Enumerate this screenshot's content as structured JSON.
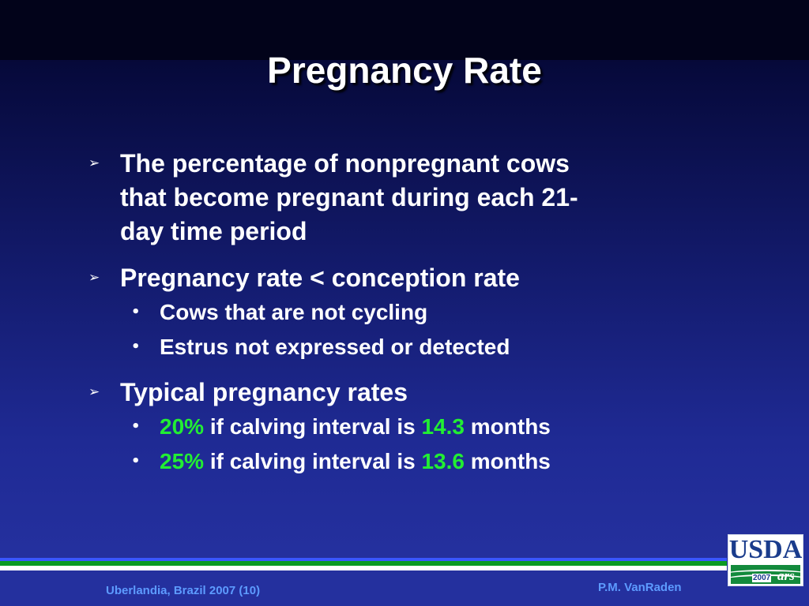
{
  "slide": {
    "title": "Pregnancy Rate",
    "bullets": [
      {
        "line1": "The percentage of nonpregnant cows",
        "line2": "that become pregnant during each 21-",
        "line3": "day time period"
      },
      {
        "text": "Pregnancy rate < conception rate",
        "sub": [
          "Cows that are not cycling",
          "Estrus not expressed or detected"
        ]
      },
      {
        "text": "Typical pregnancy rates",
        "sub": [
          {
            "rate": "20%",
            "middle": " if calving interval is ",
            "interval": "14.3",
            "unit": " months"
          },
          {
            "rate": "25%",
            "middle": " if calving interval is ",
            "interval": "13.6",
            "unit": " months"
          }
        ]
      }
    ]
  },
  "footer": {
    "left": "Uberlandia, Brazil 2007 (10)",
    "right": "P.M. VanRaden"
  },
  "logo": {
    "name": "USDA",
    "year": "2007",
    "ars": "ars"
  },
  "colors": {
    "highlight": "#22ee33",
    "footer_text": "#5d9bff",
    "stripe_green": "#0a9a22",
    "stripe_blue": "#3a56ff"
  },
  "icons": {
    "level1": "arrowhead-bullet-icon",
    "level2": "dot-bullet-icon"
  }
}
